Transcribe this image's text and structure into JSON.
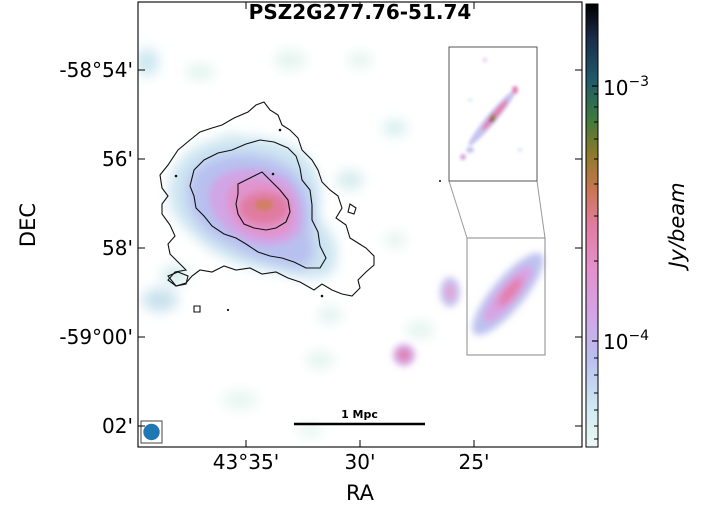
{
  "chart_data": {
    "type": "heatmap",
    "title": "PSZ2G277.76-51.74",
    "xlabel": "RA",
    "ylabel": "DEC",
    "x_ticks": [
      "43°35'",
      "30'",
      "25'"
    ],
    "y_ticks": [
      "-58°54'",
      "56'",
      "58'",
      "-59°00'",
      "02'"
    ],
    "colorbar": {
      "label": "Jy/beam",
      "scale": "log",
      "ticks": [
        {
          "value": 0.001,
          "base": "10",
          "exp": "−3"
        },
        {
          "value": 0.0001,
          "base": "10",
          "exp": "−4"
        }
      ],
      "colormap": [
        "#ecfaf2",
        "#cfe9f2",
        "#b9bff0",
        "#d4a4e6",
        "#e491cd",
        "#e27ca0",
        "#c97653",
        "#8e7a2a",
        "#3e7a3c",
        "#1f5a6a",
        "#1c2d4a",
        "#000000"
      ]
    },
    "scale_bar_label": "1 Mpc",
    "sources": [
      {
        "name": "central cluster emission",
        "ra": "43°34.3'",
        "dec": "-58°57.1'",
        "peak": 0.00045
      },
      {
        "name": "elongated source south-east",
        "ra": "43°23.4'",
        "dec": "-58°59.0'",
        "peak": 0.0003
      },
      {
        "name": "compact source",
        "ra": "43°27.8'",
        "dec": "-59°00.4'",
        "peak": 0.0002
      },
      {
        "name": "compact source east",
        "ra": "43°25.5'",
        "dec": "-58°58.8'",
        "peak": 0.00014
      }
    ]
  }
}
